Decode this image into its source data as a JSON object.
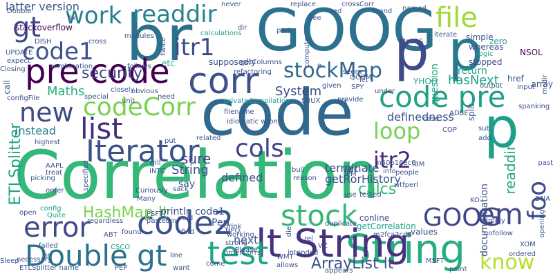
{
  "words": [
    {
      "text": "Correlation",
      "color": "#35b779",
      "vertical": false
    },
    {
      "text": "code",
      "color": "#31688e",
      "vertical": false
    },
    {
      "text": "GOOG",
      "color": "#2c728e",
      "vertical": false
    },
    {
      "text": "br",
      "color": "#2d708e",
      "vertical": false
    },
    {
      "text": "corr",
      "color": "#3b528b",
      "vertical": false
    },
    {
      "text": "p",
      "color": "#3e4a89",
      "vertical": false
    },
    {
      "text": "p",
      "color": "#2a788e",
      "vertical": false
    },
    {
      "text": "p",
      "color": "#1f9e89",
      "vertical": false
    },
    {
      "text": "pre code",
      "color": "#440154",
      "vertical": false
    },
    {
      "text": "code pre",
      "color": "#1fa187",
      "vertical": false
    },
    {
      "text": "String",
      "color": "#27ad81",
      "vertical": false
    },
    {
      "text": "lt String",
      "color": "#46327e",
      "vertical": false
    },
    {
      "text": "code2",
      "color": "#3b528b",
      "vertical": false
    },
    {
      "text": "test",
      "color": "#20a486",
      "vertical": false
    },
    {
      "text": "Double gt",
      "color": "#2c718e",
      "vertical": false
    },
    {
      "text": "error",
      "color": "#3e4989",
      "vertical": false
    },
    {
      "text": "stock",
      "color": "#35b779",
      "vertical": false
    },
    {
      "text": "GOOG",
      "color": "#404688",
      "vertical": false
    },
    {
      "text": "em",
      "color": "#3f4889",
      "vertical": false
    },
    {
      "text": "foo",
      "color": "#3e4a89",
      "vertical": false
    },
    {
      "text": "know",
      "color": "#b5de2b",
      "vertical": false
    },
    {
      "text": "list",
      "color": "#472d7b",
      "vertical": false
    },
    {
      "text": "Iterator",
      "color": "#3b528b",
      "vertical": false
    },
    {
      "text": "cols",
      "color": "#414487",
      "vertical": false
    },
    {
      "text": "loop",
      "color": "#7ad151",
      "vertical": false
    },
    {
      "text": "itr2",
      "color": "#482677",
      "vertical": false
    },
    {
      "text": "new",
      "color": "#3e4a89",
      "vertical": false
    },
    {
      "text": "codeCorr",
      "color": "#7ad151",
      "vertical": false
    },
    {
      "text": "code1",
      "color": "#3b528b",
      "vertical": false
    },
    {
      "text": "itr1",
      "color": "#3e4989",
      "vertical": false
    },
    {
      "text": "work",
      "color": "#277f8e",
      "vertical": false
    },
    {
      "text": "readdir",
      "color": "#26828e",
      "vertical": false
    },
    {
      "text": "gt",
      "color": "#3e4989",
      "vertical": false
    },
    {
      "text": "file",
      "color": "#a0da39",
      "vertical": false
    },
    {
      "text": "stockMap",
      "color": "#31688e",
      "vertical": false
    },
    {
      "text": "security",
      "color": "#404588",
      "vertical": false
    },
    {
      "text": "ETLSplitter",
      "color": "#20a386",
      "vertical": true
    },
    {
      "text": "HashMap lt",
      "color": "#7ad151",
      "vertical": false
    },
    {
      "text": "ArrayList lt",
      "color": "#3b528b",
      "vertical": false
    },
    {
      "text": "readdir",
      "color": "#20a386",
      "vertical": true
    },
    {
      "text": "System",
      "color": "#3e4989",
      "vertical": false
    },
    {
      "text": "Maths",
      "color": "#29af7f",
      "vertical": false
    },
    {
      "text": "next",
      "color": "#3a548c",
      "vertical": false
    },
    {
      "text": "calcs",
      "color": "#35b779",
      "vertical": false
    },
    {
      "text": "sure",
      "color": "#424086",
      "vertical": false
    },
    {
      "text": "String",
      "color": "#3b528b",
      "vertical": false
    },
    {
      "text": "defined",
      "color": "#3b528b",
      "vertical": false
    },
    {
      "text": "terminate",
      "color": "#3b528b",
      "vertical": false
    },
    {
      "text": "definedness",
      "color": "#3b528b",
      "vertical": false
    },
    {
      "text": "getRorHistory",
      "color": "#3b528b",
      "vertical": false
    },
    {
      "text": "hasNext",
      "color": "#20a386",
      "vertical": false
    },
    {
      "text": "return",
      "color": "#20a386",
      "vertical": false
    },
    {
      "text": "question",
      "color": "#20a386",
      "vertical": true
    },
    {
      "text": "documentation",
      "color": "#3b528b",
      "vertical": true
    },
    {
      "text": "instead",
      "color": "#277f8e",
      "vertical": false
    },
    {
      "text": "println code1",
      "color": "#3b528b",
      "vertical": false
    },
    {
      "text": "Perl",
      "color": "#3b528b",
      "vertical": false
    },
    {
      "text": "say",
      "color": "#3b528b",
      "vertical": false
    },
    {
      "text": "conline",
      "color": "#3b528b",
      "vertical": false
    },
    {
      "text": "getCorrelation",
      "color": "#20a386",
      "vertical": false
    },
    {
      "text": "values",
      "color": "#3b528b",
      "vertical": false
    },
    {
      "text": "latter version",
      "color": "#3b528b",
      "vertical": false
    },
    {
      "text": "stackoverflow",
      "color": "#440154",
      "vertical": false
    },
    {
      "text": "Double",
      "color": "#3b528b",
      "vertical": false
    },
    {
      "text": "DISH",
      "color": "#3b528b",
      "vertical": false
    },
    {
      "text": "cross",
      "color": "#3b528b",
      "vertical": false
    },
    {
      "text": "combination",
      "color": "#3b528b",
      "vertical": false
    },
    {
      "text": "follows",
      "color": "#3b528b",
      "vertical": false
    },
    {
      "text": "closely",
      "color": "#3b528b",
      "vertical": false
    },
    {
      "text": "obvious",
      "color": "#3b528b",
      "vertical": false
    },
    {
      "text": "special",
      "color": "#3b528b",
      "vertical": false
    },
    {
      "text": "need",
      "color": "#3b528b",
      "vertical": false
    },
    {
      "text": "privateCompilation",
      "color": "#20a386",
      "vertical": false
    },
    {
      "text": "SBUX",
      "color": "#3b528b",
      "vertical": false
    },
    {
      "text": "calculations",
      "color": "#20a386",
      "vertical": false
    },
    {
      "text": "supposedly",
      "color": "#3b528b",
      "vertical": false
    },
    {
      "text": "etc",
      "color": "#20a386",
      "vertical": false
    },
    {
      "text": "replace",
      "color": "#3b528b",
      "vertical": false
    },
    {
      "text": "crossCorr",
      "color": "#3b528b",
      "vertical": false
    },
    {
      "text": "MacOS",
      "color": "#3b528b",
      "vertical": false
    },
    {
      "text": "QCOM",
      "color": "#3b528b",
      "vertical": false
    },
    {
      "text": "YHOO",
      "color": "#20a386",
      "vertical": false
    },
    {
      "text": "SPY",
      "color": "#3b528b",
      "vertical": false
    },
    {
      "text": "provide",
      "color": "#3b528b",
      "vertical": false
    },
    {
      "text": "given",
      "color": "#3b528b",
      "vertical": false
    },
    {
      "text": "under",
      "color": "#3b528b",
      "vertical": false
    },
    {
      "text": "split",
      "color": "#3b528b",
      "vertical": true
    },
    {
      "text": "output",
      "color": "#3b528b",
      "vertical": false
    },
    {
      "text": "input",
      "color": "#3b528b",
      "vertical": false
    },
    {
      "text": "href",
      "color": "#3b528b",
      "vertical": false
    },
    {
      "text": "array",
      "color": "#3b528b",
      "vertical": false
    },
    {
      "text": "zero",
      "color": "#20a386",
      "vertical": false
    },
    {
      "text": "NSOL",
      "color": "#440154",
      "vertical": false
    },
    {
      "text": "simple",
      "color": "#3b528b",
      "vertical": false
    },
    {
      "text": "iterate",
      "color": "#3b528b",
      "vertical": false
    },
    {
      "text": "whereas",
      "color": "#3b528b",
      "vertical": false
    },
    {
      "text": "logic",
      "color": "#20a386",
      "vertical": false
    },
    {
      "text": "stopped",
      "color": "#3b528b",
      "vertical": false
    },
    {
      "text": "mcdir",
      "color": "#3b528b",
      "vertical": true
    },
    {
      "text": "configFile",
      "color": "#3b528b",
      "vertical": false
    },
    {
      "text": "call",
      "color": "#3b528b",
      "vertical": true
    },
    {
      "text": "highest",
      "color": "#3b528b",
      "vertical": false
    },
    {
      "text": "AAPL",
      "color": "#3b528b",
      "vertical": false
    },
    {
      "text": "treat",
      "color": "#3b528b",
      "vertical": false
    },
    {
      "text": "picking",
      "color": "#3b528b",
      "vertical": false
    },
    {
      "text": "order",
      "color": "#3b528b",
      "vertical": false
    },
    {
      "text": "config",
      "color": "#20a386",
      "vertical": false
    },
    {
      "text": "Quite",
      "color": "#20a386",
      "vertical": false
    },
    {
      "text": "open",
      "color": "#3b528b",
      "vertical": false
    },
    {
      "text": "regardless",
      "color": "#3b528b",
      "vertical": false
    },
    {
      "text": "ABT",
      "color": "#3b528b",
      "vertical": false
    },
    {
      "text": "found",
      "color": "#3b528b",
      "vertical": false
    },
    {
      "text": "CSCO",
      "color": "#20a386",
      "vertical": false
    },
    {
      "text": "failed",
      "color": "#3b528b",
      "vertical": false
    },
    {
      "text": "necessary",
      "color": "#3b528b",
      "vertical": false
    },
    {
      "text": "ETLSplitter name",
      "color": "#3b528b",
      "vertical": false
    },
    {
      "text": "Sleep",
      "color": "#3b528b",
      "vertical": false
    },
    {
      "text": "PEP",
      "color": "#3b528b",
      "vertical": false
    },
    {
      "text": "line",
      "color": "#3b528b",
      "vertical": false
    },
    {
      "text": "want",
      "color": "#3b528b",
      "vertical": false
    },
    {
      "text": "come",
      "color": "#3b528b",
      "vertical": false
    },
    {
      "text": "PSFT",
      "color": "#3b528b",
      "vertical": false
    },
    {
      "text": "Curiously",
      "color": "#3b528b",
      "vertical": false
    },
    {
      "text": "Many",
      "color": "#3b528b",
      "vertical": false
    },
    {
      "text": "pastebin",
      "color": "#3b528b",
      "vertical": false
    },
    {
      "text": "void",
      "color": "#3b528b",
      "vertical": false
    },
    {
      "text": "find",
      "color": "#3b528b",
      "vertical": false
    },
    {
      "text": "drink",
      "color": "#3b528b",
      "vertical": false
    },
    {
      "text": "strong",
      "color": "#3b528b",
      "vertical": false
    },
    {
      "text": "HPQ",
      "color": "#3b528b",
      "vertical": false
    },
    {
      "text": "working",
      "color": "#3b528b",
      "vertical": false
    },
    {
      "text": "Please",
      "color": "#3b528b",
      "vertical": false
    },
    {
      "text": "orderCorrs",
      "color": "#3b528b",
      "vertical": false
    },
    {
      "text": "WMT",
      "color": "#3b528b",
      "vertical": false
    },
    {
      "text": "rel",
      "color": "#3b528b",
      "vertical": false
    },
    {
      "text": "m2fca2cd6",
      "color": "#3b528b",
      "vertical": false
    },
    {
      "text": "VZ",
      "color": "#3b528b",
      "vertical": false
    },
    {
      "text": "allows",
      "color": "#3b528b",
      "vertical": false
    },
    {
      "text": "intended",
      "color": "#3b528b",
      "vertical": false
    },
    {
      "text": "appears",
      "color": "#3b528b",
      "vertical": false
    },
    {
      "text": "MSFT",
      "color": "#3b528b",
      "vertical": false
    },
    {
      "text": "point",
      "color": "#3b528b",
      "vertical": false
    },
    {
      "text": "XOM",
      "color": "#3b528b",
      "vertical": false
    },
    {
      "text": "ordered",
      "color": "#3b528b",
      "vertical": false
    },
    {
      "text": "nofollow",
      "color": "#3b528b",
      "vertical": false
    },
    {
      "text": "simply",
      "color": "#3b528b",
      "vertical": false
    },
    {
      "text": "DNA",
      "color": "#3b528b",
      "vertical": false
    },
    {
      "text": "people",
      "color": "#3b528b",
      "vertical": false
    },
    {
      "text": "JPM",
      "color": "#3b528b",
      "vertical": false
    },
    {
      "text": "filename",
      "color": "#3b528b",
      "vertical": false
    },
    {
      "text": "idiomatic wrong",
      "color": "#3b528b",
      "vertical": false
    },
    {
      "text": "related",
      "color": "#3b528b",
      "vertical": false
    },
    {
      "text": "put",
      "color": "#3b528b",
      "vertical": false
    },
    {
      "text": "will",
      "color": "#3b528b",
      "vertical": false
    },
    {
      "text": "INTC",
      "color": "#3b528b",
      "vertical": false
    },
    {
      "text": "m50b16ec6",
      "color": "#3b528b",
      "vertical": false
    },
    {
      "text": "info",
      "color": "#3b528b",
      "vertical": false
    },
    {
      "text": "wtfperl",
      "color": "#3b528b",
      "vertical": false
    },
    {
      "text": "WFC",
      "color": "#3b528b",
      "vertical": false
    },
    {
      "text": "use",
      "color": "#3b528b",
      "vertical": false
    },
    {
      "text": "tested",
      "color": "#3b528b",
      "vertical": false
    },
    {
      "text": "IBM",
      "color": "#3b528b",
      "vertical": false
    },
    {
      "text": "sub",
      "color": "#3b528b",
      "vertical": false
    },
    {
      "text": "COP",
      "color": "#3b528b",
      "vertical": false
    },
    {
      "text": "case",
      "color": "#3b528b",
      "vertical": false
    },
    {
      "text": "ADBE",
      "color": "#3b528b",
      "vertical": false
    },
    {
      "text": "add",
      "color": "#3b528b",
      "vertical": false
    },
    {
      "text": "spanking",
      "color": "#3b528b",
      "vertical": false
    },
    {
      "text": "past",
      "color": "#3b528b",
      "vertical": false
    },
    {
      "text": "UPDATE",
      "color": "#3b528b",
      "vertical": false
    },
    {
      "text": "expect",
      "color": "#3b528b",
      "vertical": false
    },
    {
      "text": "Closing",
      "color": "#3b528b",
      "vertical": false
    },
    {
      "text": "never",
      "color": "#3b528b",
      "vertical": false
    },
    {
      "text": "red",
      "color": "#3b528b",
      "vertical": false
    },
    {
      "text": "brand",
      "color": "#3b528b",
      "vertical": false
    },
    {
      "text": "See",
      "color": "#3b528b",
      "vertical": false
    },
    {
      "text": "named",
      "color": "#3b528b",
      "vertical": false
    },
    {
      "text": "part",
      "color": "#3b528b",
      "vertical": false
    },
    {
      "text": "compute",
      "color": "#3b528b",
      "vertical": false
    },
    {
      "text": "dir",
      "color": "#3b528b",
      "vertical": false
    },
    {
      "text": "fix",
      "color": "#3b528b",
      "vertical": false
    },
    {
      "text": "modules",
      "color": "#3b528b",
      "vertical": false
    },
    {
      "text": "twice",
      "color": "#3b528b",
      "vertical": false
    },
    {
      "text": "getColumns",
      "color": "#3b528b",
      "vertical": false
    },
    {
      "text": "bull",
      "color": "#3b528b",
      "vertical": false
    },
    {
      "text": "reason",
      "color": "#3b528b",
      "vertical": false
    },
    {
      "text": "die",
      "color": "#3b528b",
      "vertical": false
    },
    {
      "text": "duplicate",
      "color": "#3b528b",
      "vertical": false
    },
    {
      "text": "opening",
      "color": "#3b528b",
      "vertical": false
    },
    {
      "text": "specified",
      "color": "#3b528b",
      "vertical": false
    },
    {
      "text": "refactoring",
      "color": "#3b528b",
      "vertical": false
    },
    {
      "text": "unit",
      "color": "#3b528b",
      "vertical": false
    },
    {
      "text": "sack",
      "color": "#3b528b",
      "vertical": false
    },
    {
      "text": "KO",
      "color": "#3b528b",
      "vertical": false
    },
    {
      "text": "seem",
      "color": "#3b528b",
      "vertical": false
    },
    {
      "text": "let",
      "color": "#3b528b",
      "vertical": false
    },
    {
      "text": "hr",
      "color": "#3b528b",
      "vertical": false
    },
    {
      "text": "e",
      "color": "#3b528b",
      "vertical": false
    },
    {
      "text": "X",
      "color": "#3b528b",
      "vertical": false
    }
  ]
}
